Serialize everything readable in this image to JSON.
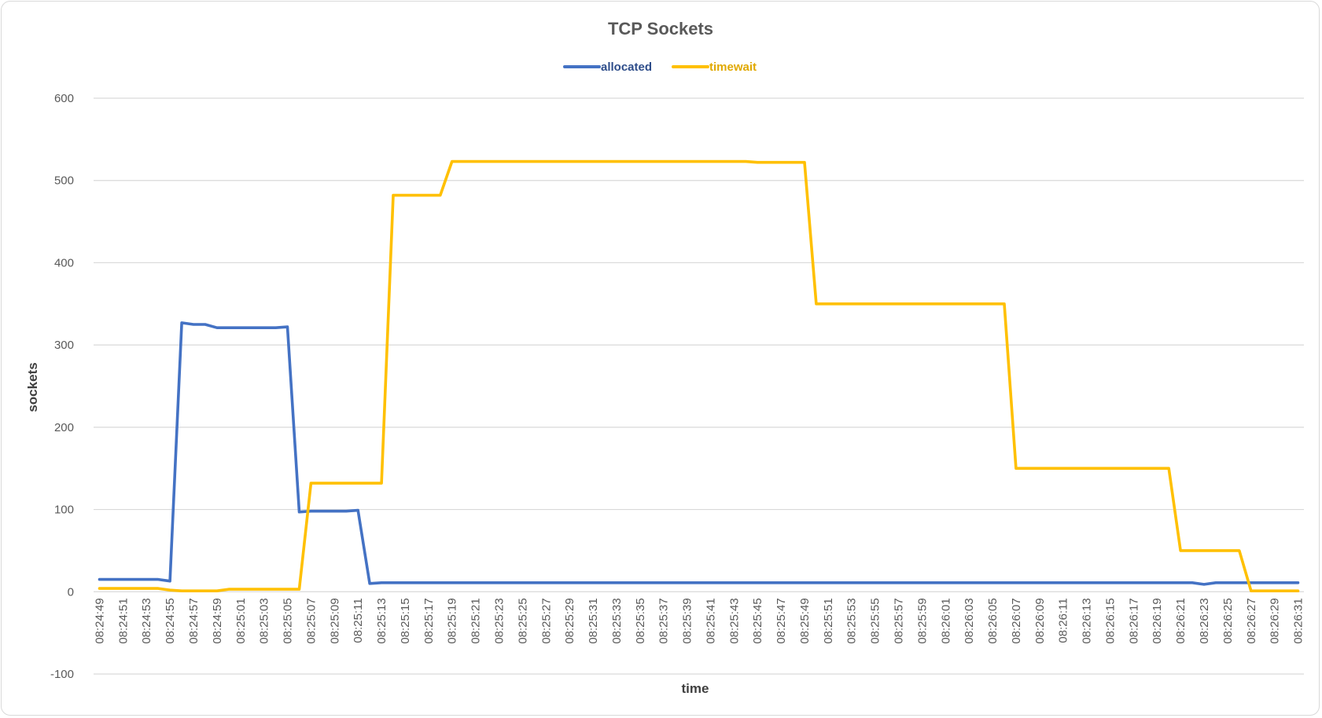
{
  "chart_data": {
    "type": "line",
    "title": "TCP Sockets",
    "xlabel": "time",
    "ylabel": "sockets",
    "ylim": [
      -100,
      600
    ],
    "yticks": [
      -100,
      0,
      100,
      200,
      300,
      400,
      500,
      600
    ],
    "grid": true,
    "legend": "top",
    "x": [
      "08:24:49",
      "08:24:50",
      "08:24:51",
      "08:24:52",
      "08:24:53",
      "08:24:54",
      "08:24:55",
      "08:24:56",
      "08:24:57",
      "08:24:58",
      "08:24:59",
      "08:25:00",
      "08:25:01",
      "08:25:02",
      "08:25:03",
      "08:25:04",
      "08:25:05",
      "08:25:06",
      "08:25:07",
      "08:25:08",
      "08:25:09",
      "08:25:10",
      "08:25:11",
      "08:25:12",
      "08:25:13",
      "08:25:14",
      "08:25:15",
      "08:25:16",
      "08:25:17",
      "08:25:18",
      "08:25:19",
      "08:25:20",
      "08:25:21",
      "08:25:22",
      "08:25:23",
      "08:25:24",
      "08:25:25",
      "08:25:26",
      "08:25:27",
      "08:25:28",
      "08:25:29",
      "08:25:30",
      "08:25:31",
      "08:25:32",
      "08:25:33",
      "08:25:34",
      "08:25:35",
      "08:25:36",
      "08:25:37",
      "08:25:38",
      "08:25:39",
      "08:25:40",
      "08:25:41",
      "08:25:42",
      "08:25:43",
      "08:25:44",
      "08:25:45",
      "08:25:46",
      "08:25:47",
      "08:25:48",
      "08:25:49",
      "08:25:50",
      "08:25:51",
      "08:25:52",
      "08:25:53",
      "08:25:54",
      "08:25:55",
      "08:25:56",
      "08:25:57",
      "08:25:58",
      "08:25:59",
      "08:26:00",
      "08:26:01",
      "08:26:02",
      "08:26:03",
      "08:26:04",
      "08:26:05",
      "08:26:06",
      "08:26:07",
      "08:26:08",
      "08:26:09",
      "08:26:10",
      "08:26:11",
      "08:26:12",
      "08:26:13",
      "08:26:14",
      "08:26:15",
      "08:26:16",
      "08:26:17",
      "08:26:18",
      "08:26:19",
      "08:26:20",
      "08:26:21",
      "08:26:22",
      "08:26:23",
      "08:26:24",
      "08:26:25",
      "08:26:26",
      "08:26:27",
      "08:26:28",
      "08:26:29",
      "08:26:30",
      "08:26:31"
    ],
    "xticks": [
      "08:24:49",
      "08:24:51",
      "08:24:53",
      "08:24:55",
      "08:24:57",
      "08:24:59",
      "08:25:01",
      "08:25:03",
      "08:25:05",
      "08:25:07",
      "08:25:09",
      "08:25:11",
      "08:25:13",
      "08:25:15",
      "08:25:17",
      "08:25:19",
      "08:25:21",
      "08:25:23",
      "08:25:25",
      "08:25:27",
      "08:25:29",
      "08:25:31",
      "08:25:33",
      "08:25:35",
      "08:25:37",
      "08:25:39",
      "08:25:41",
      "08:25:43",
      "08:25:45",
      "08:25:47",
      "08:25:49",
      "08:25:51",
      "08:25:53",
      "08:25:55",
      "08:25:57",
      "08:25:59",
      "08:26:01",
      "08:26:03",
      "08:26:05",
      "08:26:07",
      "08:26:09",
      "08:26:11",
      "08:26:13",
      "08:26:15",
      "08:26:17",
      "08:26:19",
      "08:26:21",
      "08:26:23",
      "08:26:25",
      "08:26:27",
      "08:26:29",
      "08:26:31"
    ],
    "series": [
      {
        "name": "allocated",
        "color": "#4472c4",
        "values": [
          15,
          15,
          15,
          15,
          15,
          15,
          13,
          327,
          325,
          325,
          321,
          321,
          321,
          321,
          321,
          321,
          322,
          97,
          98,
          98,
          98,
          98,
          99,
          10,
          11,
          11,
          11,
          11,
          11,
          11,
          11,
          11,
          11,
          11,
          11,
          11,
          11,
          11,
          11,
          11,
          11,
          11,
          11,
          11,
          11,
          11,
          11,
          11,
          11,
          11,
          11,
          11,
          11,
          11,
          11,
          11,
          11,
          11,
          11,
          11,
          11,
          11,
          11,
          11,
          11,
          11,
          11,
          11,
          11,
          11,
          11,
          11,
          11,
          11,
          11,
          11,
          11,
          11,
          11,
          11,
          11,
          11,
          11,
          11,
          11,
          11,
          11,
          11,
          11,
          11,
          11,
          11,
          11,
          11,
          9,
          11,
          11,
          11,
          11,
          11,
          11,
          11,
          11
        ]
      },
      {
        "name": "timewait",
        "color": "#ffc000",
        "values": [
          4,
          4,
          4,
          4,
          4,
          4,
          2,
          1,
          1,
          1,
          1,
          3,
          3,
          3,
          3,
          3,
          3,
          3,
          132,
          132,
          132,
          132,
          132,
          132,
          132,
          482,
          482,
          482,
          482,
          482,
          523,
          523,
          523,
          523,
          523,
          523,
          523,
          523,
          523,
          523,
          523,
          523,
          523,
          523,
          523,
          523,
          523,
          523,
          523,
          523,
          523,
          523,
          523,
          523,
          523,
          523,
          522,
          522,
          522,
          522,
          522,
          350,
          350,
          350,
          350,
          350,
          350,
          350,
          350,
          350,
          350,
          350,
          350,
          350,
          350,
          350,
          350,
          350,
          150,
          150,
          150,
          150,
          150,
          150,
          150,
          150,
          150,
          150,
          150,
          150,
          150,
          150,
          50,
          50,
          50,
          50,
          50,
          50,
          1,
          1,
          1,
          1,
          1
        ]
      }
    ]
  }
}
